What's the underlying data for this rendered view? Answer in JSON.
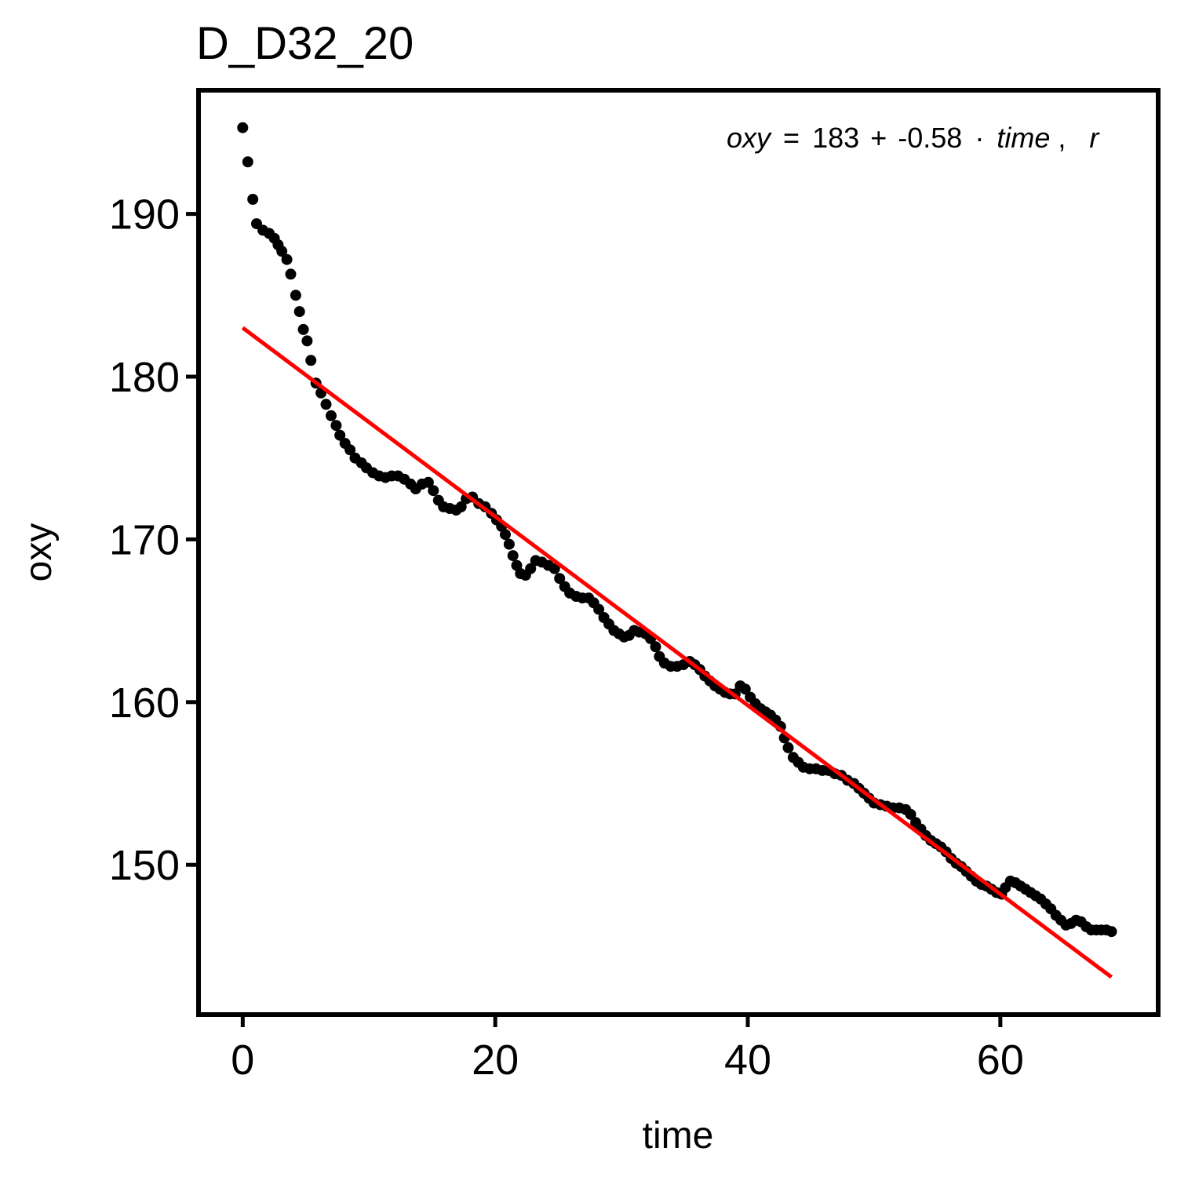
{
  "chart_data": {
    "type": "scatter",
    "title": "D_D32_20",
    "xlabel": "time",
    "ylabel": "oxy",
    "xlim": [
      -3.5,
      72.5
    ],
    "ylim": [
      140.8,
      197.6
    ],
    "xticks": [
      0,
      20,
      40,
      60
    ],
    "yticks": [
      150,
      160,
      170,
      180,
      190
    ],
    "xtick_labels": [
      "0",
      "20",
      "40",
      "60"
    ],
    "ytick_labels": [
      "150",
      "160",
      "170",
      "180",
      "190"
    ],
    "grid": false,
    "legend": "none",
    "annotation": {
      "var_y": "oxy",
      "eq_sign": "=",
      "intercept": "183",
      "plus": "+",
      "slope": "-0.58",
      "dot": "·",
      "var_x": "time",
      "comma": ",",
      "tail": "r"
    },
    "series": [
      {
        "type": "scatter",
        "color": "#000000",
        "points": [
          [
            0.0,
            195.3
          ],
          [
            0.4,
            193.2
          ],
          [
            0.8,
            190.9
          ],
          [
            1.1,
            189.4
          ],
          [
            1.6,
            189.0
          ],
          [
            2.1,
            188.8
          ],
          [
            2.5,
            188.5
          ],
          [
            2.8,
            188.1
          ],
          [
            3.1,
            187.7
          ],
          [
            3.5,
            187.2
          ],
          [
            3.8,
            186.3
          ],
          [
            4.2,
            185.0
          ],
          [
            4.5,
            184.0
          ],
          [
            4.8,
            182.9
          ],
          [
            5.1,
            182.2
          ],
          [
            5.4,
            181.0
          ],
          [
            5.8,
            179.6
          ],
          [
            6.2,
            179.0
          ],
          [
            6.6,
            178.3
          ],
          [
            7.0,
            177.6
          ],
          [
            7.4,
            177.0
          ],
          [
            7.7,
            176.4
          ],
          [
            8.1,
            175.9
          ],
          [
            8.5,
            175.5
          ],
          [
            8.9,
            175.0
          ],
          [
            9.4,
            174.7
          ],
          [
            9.8,
            174.4
          ],
          [
            10.3,
            174.1
          ],
          [
            10.8,
            173.9
          ],
          [
            11.3,
            173.8
          ],
          [
            11.8,
            173.9
          ],
          [
            12.3,
            173.9
          ],
          [
            12.8,
            173.7
          ],
          [
            13.3,
            173.4
          ],
          [
            13.7,
            173.1
          ],
          [
            14.2,
            173.4
          ],
          [
            14.7,
            173.5
          ],
          [
            15.1,
            173.0
          ],
          [
            15.5,
            172.4
          ],
          [
            15.9,
            172.0
          ],
          [
            16.4,
            171.9
          ],
          [
            16.9,
            171.8
          ],
          [
            17.3,
            172.0
          ],
          [
            17.7,
            172.5
          ],
          [
            18.2,
            172.6
          ],
          [
            18.7,
            172.2
          ],
          [
            19.2,
            172.0
          ],
          [
            19.7,
            171.6
          ],
          [
            20.1,
            171.2
          ],
          [
            20.5,
            170.8
          ],
          [
            20.8,
            170.3
          ],
          [
            21.1,
            169.7
          ],
          [
            21.4,
            169.0
          ],
          [
            21.7,
            168.4
          ],
          [
            22.0,
            167.9
          ],
          [
            22.4,
            167.8
          ],
          [
            22.8,
            168.2
          ],
          [
            23.2,
            168.7
          ],
          [
            23.7,
            168.6
          ],
          [
            24.2,
            168.4
          ],
          [
            24.7,
            168.2
          ],
          [
            25.1,
            167.6
          ],
          [
            25.5,
            167.1
          ],
          [
            25.9,
            166.7
          ],
          [
            26.4,
            166.5
          ],
          [
            26.9,
            166.4
          ],
          [
            27.4,
            166.4
          ],
          [
            27.8,
            166.1
          ],
          [
            28.2,
            165.7
          ],
          [
            28.6,
            165.2
          ],
          [
            29.0,
            164.8
          ],
          [
            29.4,
            164.4
          ],
          [
            29.8,
            164.2
          ],
          [
            30.2,
            164.0
          ],
          [
            30.6,
            164.1
          ],
          [
            31.0,
            164.4
          ],
          [
            31.4,
            164.3
          ],
          [
            31.9,
            164.2
          ],
          [
            32.3,
            163.9
          ],
          [
            32.7,
            163.4
          ],
          [
            33.0,
            162.8
          ],
          [
            33.4,
            162.4
          ],
          [
            33.9,
            162.2
          ],
          [
            34.4,
            162.2
          ],
          [
            34.9,
            162.3
          ],
          [
            35.4,
            162.5
          ],
          [
            35.8,
            162.3
          ],
          [
            36.2,
            162.0
          ],
          [
            36.6,
            161.6
          ],
          [
            37.0,
            161.3
          ],
          [
            37.4,
            161.0
          ],
          [
            37.8,
            160.8
          ],
          [
            38.2,
            160.6
          ],
          [
            38.6,
            160.5
          ],
          [
            39.0,
            160.5
          ],
          [
            39.4,
            161.0
          ],
          [
            39.8,
            160.8
          ],
          [
            40.2,
            160.3
          ],
          [
            40.6,
            159.9
          ],
          [
            41.0,
            159.6
          ],
          [
            41.4,
            159.4
          ],
          [
            41.8,
            159.2
          ],
          [
            42.2,
            158.9
          ],
          [
            42.6,
            158.5
          ],
          [
            42.9,
            157.8
          ],
          [
            43.2,
            157.2
          ],
          [
            43.6,
            156.6
          ],
          [
            44.0,
            156.3
          ],
          [
            44.4,
            156.0
          ],
          [
            44.9,
            155.9
          ],
          [
            45.4,
            155.9
          ],
          [
            45.9,
            155.8
          ],
          [
            46.4,
            155.8
          ],
          [
            46.9,
            155.6
          ],
          [
            47.4,
            155.5
          ],
          [
            47.9,
            155.2
          ],
          [
            48.4,
            155.0
          ],
          [
            48.8,
            154.7
          ],
          [
            49.2,
            154.4
          ],
          [
            49.6,
            154.1
          ],
          [
            50.0,
            153.8
          ],
          [
            50.5,
            153.7
          ],
          [
            51.0,
            153.6
          ],
          [
            51.5,
            153.5
          ],
          [
            52.0,
            153.5
          ],
          [
            52.5,
            153.4
          ],
          [
            52.9,
            153.1
          ],
          [
            53.3,
            152.6
          ],
          [
            53.7,
            152.2
          ],
          [
            54.1,
            151.8
          ],
          [
            54.5,
            151.5
          ],
          [
            54.9,
            151.3
          ],
          [
            55.3,
            151.1
          ],
          [
            55.7,
            150.8
          ],
          [
            56.1,
            150.4
          ],
          [
            56.5,
            150.1
          ],
          [
            56.9,
            149.9
          ],
          [
            57.3,
            149.6
          ],
          [
            57.7,
            149.3
          ],
          [
            58.1,
            149.0
          ],
          [
            58.5,
            148.8
          ],
          [
            58.9,
            148.7
          ],
          [
            59.3,
            148.5
          ],
          [
            59.7,
            148.3
          ],
          [
            60.1,
            148.2
          ],
          [
            60.4,
            148.6
          ],
          [
            60.8,
            149.0
          ],
          [
            61.2,
            148.9
          ],
          [
            61.6,
            148.7
          ],
          [
            62.0,
            148.5
          ],
          [
            62.4,
            148.3
          ],
          [
            62.8,
            148.1
          ],
          [
            63.2,
            147.9
          ],
          [
            63.6,
            147.6
          ],
          [
            64.0,
            147.3
          ],
          [
            64.4,
            146.9
          ],
          [
            64.8,
            146.6
          ],
          [
            65.2,
            146.3
          ],
          [
            65.6,
            146.4
          ],
          [
            66.0,
            146.6
          ],
          [
            66.4,
            146.5
          ],
          [
            66.8,
            146.2
          ],
          [
            67.2,
            146.0
          ],
          [
            67.6,
            146.0
          ],
          [
            68.0,
            146.0
          ],
          [
            68.4,
            146.0
          ],
          [
            68.8,
            145.9
          ]
        ]
      },
      {
        "type": "line",
        "color": "#ff0000",
        "points": [
          [
            0.0,
            183.0
          ],
          [
            68.8,
            143.1
          ]
        ]
      }
    ]
  }
}
